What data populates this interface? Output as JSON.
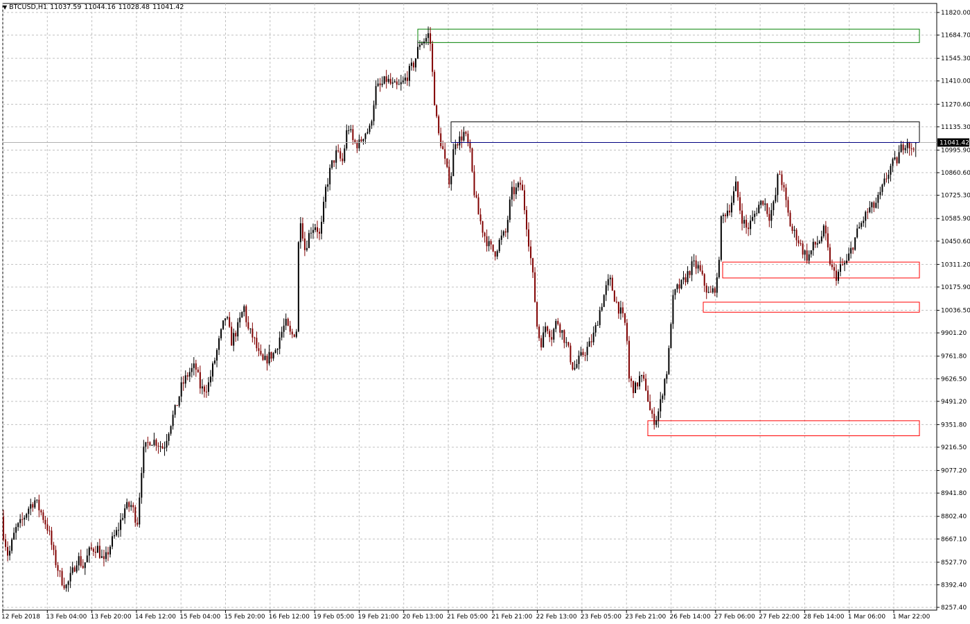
{
  "header": {
    "symbol": "BTCUSD,H1",
    "open": "11037.59",
    "high": "11044.16",
    "low": "11028.48",
    "close": "11041.42"
  },
  "colors": {
    "background": "#ffffff",
    "grid": "#c0c0c0",
    "bull_body": "#000000",
    "bear_body": "#800000",
    "bid_line": "#000080",
    "resistance_box": "#008000",
    "supply_box": "#000000",
    "demand_box": "#ff0000",
    "price_label_bg": "#000000",
    "price_label_text": "#ffffff"
  },
  "chart_data": {
    "type": "candlestick",
    "title": "BTCUSD,H1",
    "grid": true,
    "y_axis": {
      "position": "right",
      "ylim": [
        8257.4,
        11820.0
      ],
      "ticks": [
        "11820.00",
        "11684.70",
        "11545.30",
        "11410.00",
        "11270.60",
        "11135.30",
        "10995.90",
        "10860.60",
        "10725.30",
        "10585.90",
        "10450.60",
        "10311.20",
        "10175.90",
        "10036.50",
        "9901.20",
        "9761.80",
        "9626.50",
        "9491.20",
        "9351.80",
        "9216.50",
        "9077.20",
        "8941.80",
        "8802.40",
        "8667.10",
        "8527.70",
        "8392.40",
        "8257.40"
      ]
    },
    "x_axis": {
      "ticks": [
        "12 Feb 2018",
        "13 Feb 04:00",
        "13 Feb 20:00",
        "14 Feb 12:00",
        "15 Feb 04:00",
        "15 Feb 20:00",
        "16 Feb 12:00",
        "19 Feb 05:00",
        "19 Feb 21:00",
        "20 Feb 13:00",
        "21 Feb 05:00",
        "21 Feb 21:00",
        "22 Feb 13:00",
        "23 Feb 05:00",
        "23 Feb 21:00",
        "26 Feb 14:00",
        "27 Feb 06:00",
        "27 Feb 22:00",
        "28 Feb 14:00",
        "1 Mar 06:00",
        "1 Mar 22:00"
      ]
    },
    "current_price": "11041.42",
    "zones": [
      {
        "color": "green",
        "start": "20 Feb 13:00",
        "end": "1 Mar 22:00",
        "top": 11720,
        "bottom": 11640
      },
      {
        "color": "black",
        "start": "21 Feb 05:00",
        "end": "1 Mar 22:00",
        "top": 11165,
        "bottom": 11041.42
      },
      {
        "color": "red",
        "start": "27 Feb 06:00",
        "end": "1 Mar 22:00",
        "top": 10325,
        "bottom": 10230
      },
      {
        "color": "red",
        "start": "26 Feb 14:00",
        "end": "1 Mar 22:00",
        "top": 10085,
        "bottom": 10025
      },
      {
        "color": "red",
        "start": "23 Feb 21:00",
        "end": "1 Mar 22:00",
        "top": 9375,
        "bottom": 9285
      }
    ],
    "path": [
      [
        0,
        8800
      ],
      [
        12,
        8560
      ],
      [
        22,
        8720
      ],
      [
        30,
        8760
      ],
      [
        42,
        8860
      ],
      [
        50,
        8900
      ],
      [
        60,
        8820
      ],
      [
        70,
        8720
      ],
      [
        78,
        8560
      ],
      [
        88,
        8430
      ],
      [
        96,
        8380
      ],
      [
        104,
        8460
      ],
      [
        112,
        8560
      ],
      [
        120,
        8500
      ],
      [
        130,
        8600
      ],
      [
        140,
        8620
      ],
      [
        150,
        8520
      ],
      [
        160,
        8640
      ],
      [
        170,
        8720
      ],
      [
        180,
        8850
      ],
      [
        190,
        8870
      ],
      [
        198,
        8760
      ],
      [
        206,
        9180
      ],
      [
        216,
        9260
      ],
      [
        226,
        9250
      ],
      [
        236,
        9210
      ],
      [
        246,
        9360
      ],
      [
        254,
        9450
      ],
      [
        262,
        9580
      ],
      [
        272,
        9660
      ],
      [
        282,
        9700
      ],
      [
        290,
        9560
      ],
      [
        300,
        9580
      ],
      [
        310,
        9740
      ],
      [
        318,
        9880
      ],
      [
        326,
        10010
      ],
      [
        334,
        9850
      ],
      [
        344,
        9940
      ],
      [
        352,
        10060
      ],
      [
        358,
        9920
      ],
      [
        366,
        9870
      ],
      [
        374,
        9760
      ],
      [
        380,
        9720
      ],
      [
        388,
        9760
      ],
      [
        396,
        9780
      ],
      [
        404,
        9880
      ],
      [
        412,
        9960
      ],
      [
        420,
        9880
      ],
      [
        428,
        9920
      ],
      [
        432,
        10650
      ],
      [
        440,
        10400
      ],
      [
        448,
        10520
      ],
      [
        456,
        10550
      ],
      [
        462,
        10470
      ],
      [
        470,
        10760
      ],
      [
        478,
        10900
      ],
      [
        486,
        10980
      ],
      [
        494,
        10920
      ],
      [
        502,
        11150
      ],
      [
        510,
        11040
      ],
      [
        518,
        11030
      ],
      [
        526,
        11100
      ],
      [
        534,
        11120
      ],
      [
        542,
        11360
      ],
      [
        550,
        11380
      ],
      [
        558,
        11420
      ],
      [
        566,
        11380
      ],
      [
        574,
        11370
      ],
      [
        582,
        11400
      ],
      [
        590,
        11460
      ],
      [
        598,
        11520
      ],
      [
        606,
        11640
      ],
      [
        614,
        11660
      ],
      [
        620,
        11700
      ],
      [
        626,
        11340
      ],
      [
        632,
        11100
      ],
      [
        638,
        11020
      ],
      [
        644,
        10880
      ],
      [
        650,
        10800
      ],
      [
        656,
        11060
      ],
      [
        662,
        11050
      ],
      [
        670,
        11100
      ],
      [
        678,
        10990
      ],
      [
        684,
        10760
      ],
      [
        690,
        10620
      ],
      [
        698,
        10500
      ],
      [
        706,
        10420
      ],
      [
        714,
        10380
      ],
      [
        722,
        10460
      ],
      [
        730,
        10500
      ],
      [
        738,
        10740
      ],
      [
        746,
        10760
      ],
      [
        752,
        10800
      ],
      [
        758,
        10620
      ],
      [
        764,
        10420
      ],
      [
        770,
        10200
      ],
      [
        776,
        9900
      ],
      [
        782,
        9840
      ],
      [
        788,
        9960
      ],
      [
        796,
        9880
      ],
      [
        804,
        9980
      ],
      [
        812,
        9900
      ],
      [
        820,
        9800
      ],
      [
        828,
        9680
      ],
      [
        836,
        9740
      ],
      [
        842,
        9780
      ],
      [
        850,
        9820
      ],
      [
        858,
        9900
      ],
      [
        866,
        10040
      ],
      [
        874,
        10160
      ],
      [
        880,
        10220
      ],
      [
        888,
        10100
      ],
      [
        896,
        10020
      ],
      [
        904,
        9930
      ],
      [
        908,
        9620
      ],
      [
        916,
        9560
      ],
      [
        924,
        9640
      ],
      [
        932,
        9580
      ],
      [
        940,
        9390
      ],
      [
        946,
        9380
      ],
      [
        952,
        9450
      ],
      [
        958,
        9600
      ],
      [
        964,
        9700
      ],
      [
        970,
        10080
      ],
      [
        976,
        10160
      ],
      [
        984,
        10190
      ],
      [
        992,
        10250
      ],
      [
        1000,
        10310
      ],
      [
        1008,
        10290
      ],
      [
        1016,
        10200
      ],
      [
        1024,
        10120
      ],
      [
        1030,
        10160
      ],
      [
        1036,
        10210
      ],
      [
        1040,
        10560
      ],
      [
        1046,
        10620
      ],
      [
        1054,
        10660
      ],
      [
        1062,
        10780
      ],
      [
        1070,
        10600
      ],
      [
        1078,
        10520
      ],
      [
        1086,
        10580
      ],
      [
        1094,
        10660
      ],
      [
        1102,
        10700
      ],
      [
        1110,
        10600
      ],
      [
        1118,
        10680
      ],
      [
        1124,
        10880
      ],
      [
        1130,
        10780
      ],
      [
        1136,
        10640
      ],
      [
        1142,
        10520
      ],
      [
        1150,
        10480
      ],
      [
        1158,
        10400
      ],
      [
        1166,
        10350
      ],
      [
        1174,
        10420
      ],
      [
        1182,
        10450
      ],
      [
        1190,
        10520
      ],
      [
        1196,
        10360
      ],
      [
        1202,
        10260
      ],
      [
        1208,
        10240
      ],
      [
        1214,
        10300
      ],
      [
        1222,
        10320
      ],
      [
        1230,
        10420
      ],
      [
        1238,
        10510
      ],
      [
        1246,
        10580
      ],
      [
        1254,
        10640
      ],
      [
        1262,
        10660
      ],
      [
        1270,
        10720
      ],
      [
        1278,
        10820
      ],
      [
        1286,
        10900
      ],
      [
        1294,
        10930
      ],
      [
        1302,
        11020
      ],
      [
        1310,
        11060
      ],
      [
        1316,
        10980
      ],
      [
        1322,
        11040
      ]
    ]
  }
}
